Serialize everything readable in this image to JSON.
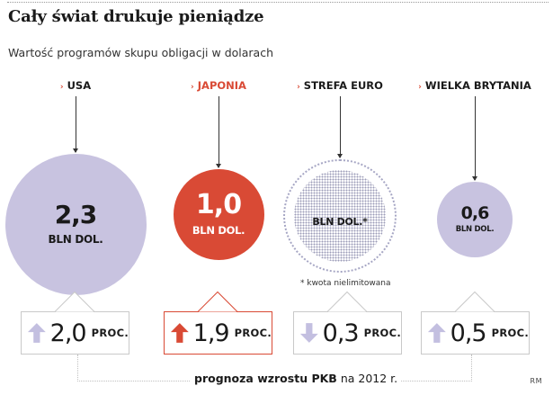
{
  "title": "Cały świat drukuje pieniądze",
  "subtitle": "Wartość programów skupu obligacji w dolarach",
  "colors": {
    "accent": "#d94a35",
    "bubble": "#c8c3e0",
    "bubble_dots": "#9c9cb8",
    "up_arrow": "#c3bfe0",
    "down_arrow": "#c3bfe0",
    "up_arrow_highlight": "#d94a35"
  },
  "chart_data": {
    "type": "bubble",
    "title": "Cały świat drukuje pieniądze",
    "subtitle": "Wartość programów skupu obligacji w dolarach",
    "unit": "BLN DOL.",
    "categories": [
      "USA",
      "JAPONIA",
      "STREFA EURO",
      "WIELKA BRYTANIA"
    ],
    "values": [
      2.3,
      1.0,
      null,
      0.6
    ],
    "value_labels": [
      "2,3",
      "1,0",
      "",
      "0,6"
    ],
    "unit_labels": [
      "BLN DOL.",
      "BLN DOL.",
      "BLN DOL.*",
      "BLN DOL."
    ],
    "highlighted": "JAPONIA",
    "note": "* kwota nielimitowana",
    "gdp_forecast": {
      "caption_bold": "prognoza wzrostu PKB",
      "caption_rest": "na 2012 r.",
      "unit": "PROC.",
      "values": [
        2.0,
        1.9,
        0.3,
        0.5
      ],
      "labels": [
        "2,0",
        "1,9",
        "0,3",
        "0,5"
      ],
      "direction": [
        "up",
        "up",
        "down",
        "up"
      ]
    }
  },
  "credit": "RM"
}
